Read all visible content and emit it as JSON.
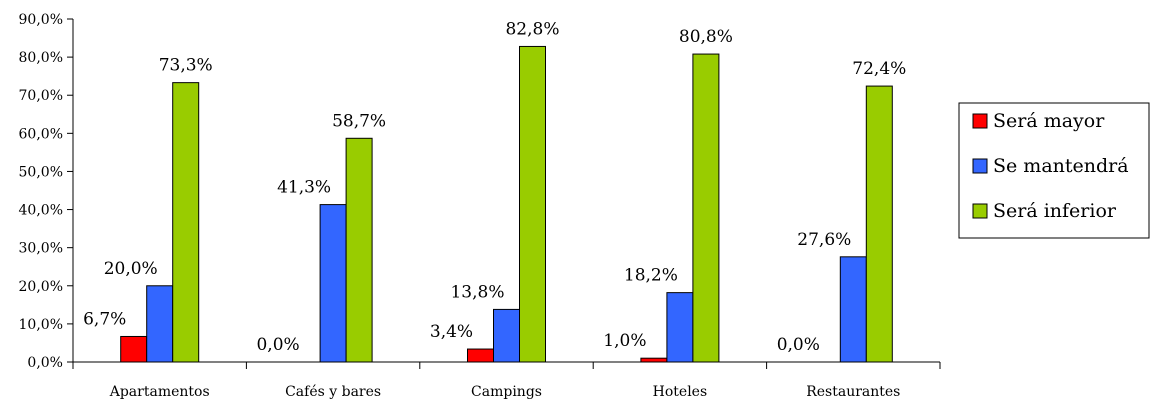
{
  "chart_data": {
    "type": "bar",
    "categories": [
      "Apartamentos",
      "Cafés y bares",
      "Campings",
      "Hoteles",
      "Restaurantes"
    ],
    "series": [
      {
        "name": "Será mayor",
        "color": "#ff0000",
        "values": [
          6.7,
          0.0,
          3.4,
          1.0,
          0.0
        ],
        "labels": [
          "6,7%",
          "0,0%",
          "3,4%",
          "1,0%",
          "0,0%"
        ]
      },
      {
        "name": "Se mantendrá",
        "color": "#3366ff",
        "values": [
          20.0,
          41.3,
          13.8,
          18.2,
          27.6
        ],
        "labels": [
          "20,0%",
          "41,3%",
          "13,8%",
          "18,2%",
          "27,6%"
        ]
      },
      {
        "name": "Será inferior",
        "color": "#99cc00",
        "values": [
          73.3,
          58.7,
          82.8,
          80.8,
          72.4
        ],
        "labels": [
          "73,3%",
          "58,7%",
          "82,8%",
          "80,8%",
          "72,4%"
        ]
      }
    ],
    "ylim": [
      0,
      90
    ],
    "yticks": [
      "0,0%",
      "10,0%",
      "20,0%",
      "30,0%",
      "40,0%",
      "50,0%",
      "60,0%",
      "70,0%",
      "80,0%",
      "90,0%"
    ],
    "grid": false,
    "legend_position": "right"
  }
}
